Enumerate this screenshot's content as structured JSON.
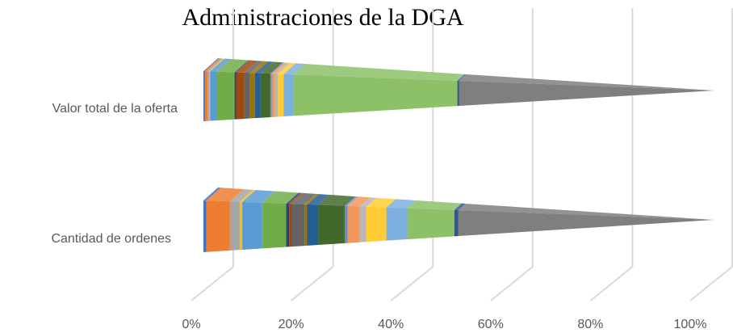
{
  "chart_data": {
    "type": "bar",
    "stacked": true,
    "horizontal": true,
    "title": "Administraciones  de la DGA",
    "categories": [
      "Valor total de la oferta",
      "Cantidad de ordenes"
    ],
    "xlim": [
      0,
      100
    ],
    "xticks": [
      {
        "value": 0,
        "label": "0%"
      },
      {
        "value": 20,
        "label": "20%"
      },
      {
        "value": 40,
        "label": "40%"
      },
      {
        "value": 60,
        "label": "60%"
      },
      {
        "value": 80,
        "label": "80%"
      },
      {
        "value": 100,
        "label": "100%"
      }
    ],
    "grid": true,
    "series": [
      {
        "color": "#4472c4",
        "values": [
          0.3,
          0.6
        ]
      },
      {
        "color": "#ed7d31",
        "values": [
          0.5,
          4.6
        ]
      },
      {
        "color": "#a5a5a5",
        "values": [
          0.3,
          1.9
        ]
      },
      {
        "color": "#ffc000",
        "values": [
          0.2,
          0.5
        ]
      },
      {
        "color": "#5b9bd5",
        "values": [
          1.3,
          3.9
        ]
      },
      {
        "color": "#70ad47",
        "values": [
          3.5,
          4.7
        ]
      },
      {
        "color": "#264478",
        "values": [
          0.3,
          0.6
        ]
      },
      {
        "color": "#9e480e",
        "values": [
          1.6,
          0.5
        ]
      },
      {
        "color": "#636363",
        "values": [
          1.1,
          2.5
        ]
      },
      {
        "color": "#997300",
        "values": [
          1.0,
          0.5
        ]
      },
      {
        "color": "#255e91",
        "values": [
          1.1,
          2.2
        ]
      },
      {
        "color": "#43682b",
        "values": [
          1.9,
          5.2
        ]
      },
      {
        "color": "#698ed0",
        "values": [
          0.3,
          0.5
        ]
      },
      {
        "color": "#f1975a",
        "values": [
          0.6,
          2.4
        ]
      },
      {
        "color": "#b7b7b7",
        "values": [
          0.6,
          1.3
        ]
      },
      {
        "color": "#ffcd33",
        "values": [
          1.1,
          3.9
        ]
      },
      {
        "color": "#7cafdd",
        "values": [
          1.9,
          4.1
        ]
      },
      {
        "color": "#8cc168",
        "values": [
          32.1,
          9.2
        ]
      },
      {
        "color": "#2f5597",
        "values": [
          0.3,
          0.8
        ]
      },
      {
        "color": "#7f7f7f",
        "values": [
          50,
          50
        ]
      }
    ]
  }
}
